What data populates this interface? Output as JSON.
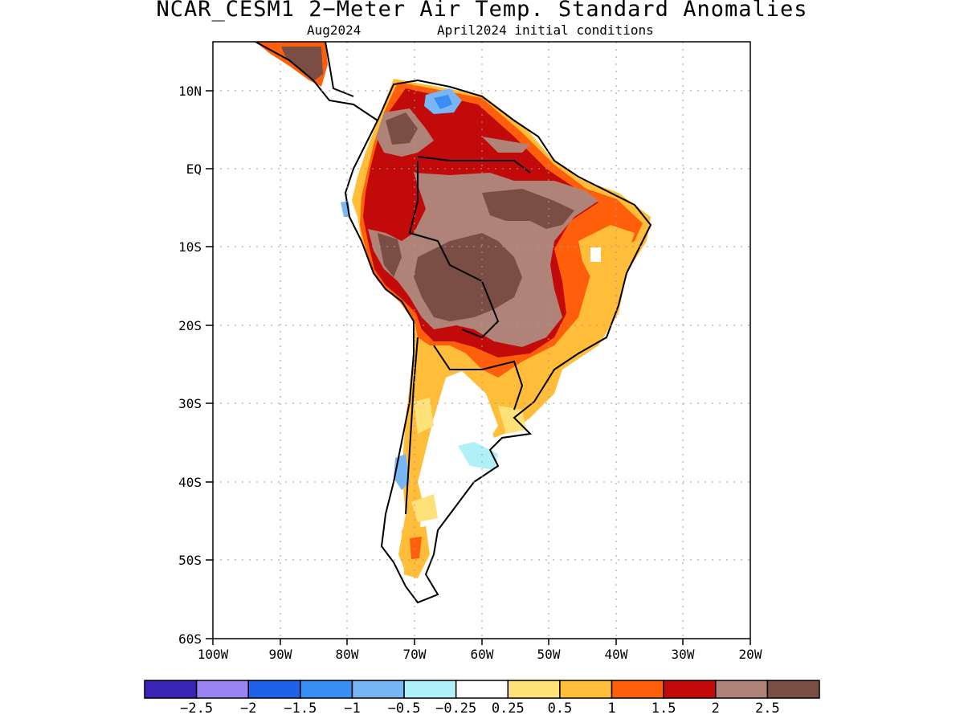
{
  "title": "NCAR_CESM1 2−Meter Air Temp. Standard Anomalies",
  "subtitle_left": "Aug2024",
  "subtitle_right": "April2024 initial conditions",
  "lat_labels": [
    "10N",
    "EQ",
    "10S",
    "20S",
    "30S",
    "40S",
    "50S",
    "60S"
  ],
  "lon_labels": [
    "100W",
    "90W",
    "80W",
    "70W",
    "60W",
    "50W",
    "40W",
    "30W",
    "20W"
  ],
  "colorbar": {
    "colors": [
      "#3a24b6",
      "#9a84f2",
      "#1f62e8",
      "#3a8df2",
      "#78b6f6",
      "#b0f0f8",
      "#ffffff",
      "#ffe17a",
      "#ffbd3a",
      "#ff5f0a",
      "#c20a0a",
      "#b08378",
      "#7a4e44"
    ],
    "labels": [
      "−2.5",
      "−2",
      "−1.5",
      "−1",
      "−0.5",
      "−0.25",
      "0.25",
      "0.5",
      "1",
      "1.5",
      "2",
      "2.5"
    ]
  }
}
